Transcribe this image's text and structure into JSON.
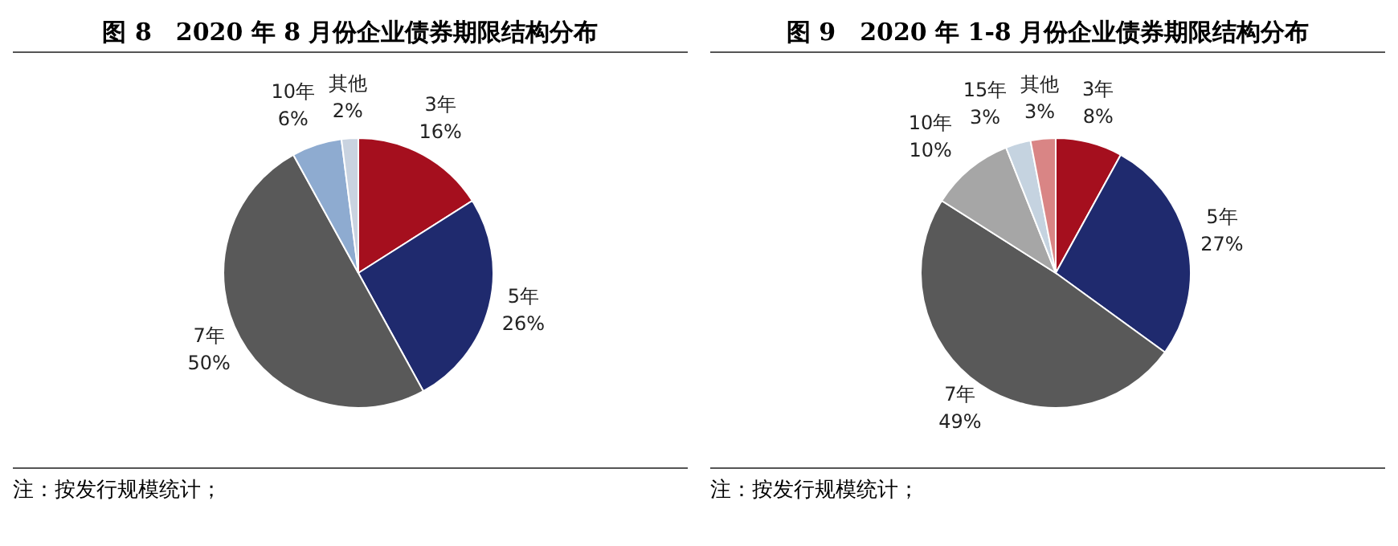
{
  "chart_data": [
    {
      "type": "pie",
      "title": "图 8　2020 年 8 月份企业债券期限结构分布",
      "categories": [
        "3年",
        "5年",
        "7年",
        "10年",
        "其他"
      ],
      "values": [
        16,
        26,
        50,
        6,
        2
      ],
      "value_labels": [
        "16%",
        "26%",
        "50%",
        "6%",
        "2%"
      ],
      "colors": [
        "#a50f1e",
        "#1f2a6e",
        "#595959",
        "#8eabd0",
        "#c9d3e0"
      ],
      "legend": false,
      "annotations": [
        "注：按发行规模统计；"
      ]
    },
    {
      "type": "pie",
      "title": "图 9　2020 年 1-8 月份企业债券期限结构分布",
      "categories": [
        "3年",
        "5年",
        "7年",
        "10年",
        "15年",
        "其他"
      ],
      "values": [
        8,
        27,
        49,
        10,
        3,
        3
      ],
      "value_labels": [
        "8%",
        "27%",
        "49%",
        "10%",
        "3%",
        "3%"
      ],
      "colors": [
        "#a50f1e",
        "#1f2a6e",
        "#595959",
        "#a6a6a6",
        "#c5d3e0",
        "#d98585"
      ],
      "legend": false,
      "annotations": [
        "注：按发行规模统计；"
      ]
    }
  ]
}
